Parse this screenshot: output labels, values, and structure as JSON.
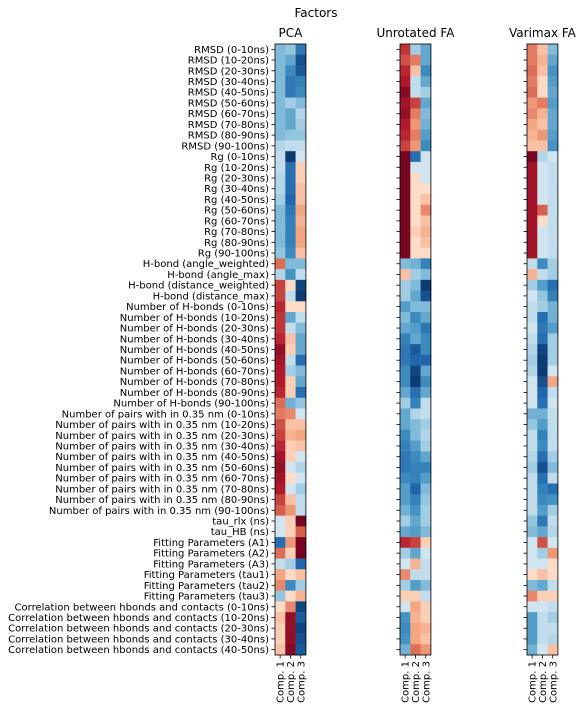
{
  "chart_data": {
    "type": "heatmap",
    "title": "Factors",
    "colormap": "RdBu",
    "range": [
      -1,
      1
    ],
    "rows": [
      "RMSD (0-10ns)",
      "RMSD (10-20ns)",
      "RMSD (20-30ns)",
      "RMSD (30-40ns)",
      "RMSD (40-50ns)",
      "RMSD (50-60ns)",
      "RMSD (60-70ns)",
      "RMSD (70-80ns)",
      "RMSD (80-90ns)",
      "RMSD (90-100ns)",
      "Rg (0-10ns)",
      "Rg (10-20ns)",
      "Rg (20-30ns)",
      "Rg (30-40ns)",
      "Rg (40-50ns)",
      "Rg (50-60ns)",
      "Rg (60-70ns)",
      "Rg (70-80ns)",
      "Rg (80-90ns)",
      "Rg (90-100ns)",
      "H-bond (angle_weighted)",
      "H-bond (angle_max)",
      "H-bond (distance_weighted)",
      "H-bond (distance_max)",
      "Number of H-bonds (0-10ns)",
      "Number of H-bonds (10-20ns)",
      "Number of H-bonds (20-30ns)",
      "Number of H-bonds (30-40ns)",
      "Number of H-bonds (40-50ns)",
      "Number of H-bonds (50-60ns)",
      "Number of H-bonds (60-70ns)",
      "Number of H-bonds (70-80ns)",
      "Number of H-bonds (80-90ns)",
      "Number of H-bonds (90-100ns)",
      "Number of pairs with in 0.35 nm (0-10ns)",
      "Number of pairs with in 0.35 nm (10-20ns)",
      "Number of pairs with in 0.35 nm (20-30ns)",
      "Number of pairs with in 0.35 nm (30-40ns)",
      "Number of pairs with in 0.35 nm (40-50ns)",
      "Number of pairs with in 0.35 nm (50-60ns)",
      "Number of pairs with in 0.35 nm (60-70ns)",
      "Number of pairs with in 0.35 nm (70-80ns)",
      "Number of pairs with in 0.35 nm (80-90ns)",
      "Number of pairs with in 0.35 nm (90-100ns)",
      "tau_rlx (ns)",
      "tau_HB (ns)",
      "Fitting Parameters (A1)",
      "Fitting Parameters (A2)",
      "Fitting Parameters (A3)",
      "Fitting Parameters (tau1)",
      "Fitting Parameters (tau2)",
      "Fitting Parameters (tau3)",
      "Correlation between hbonds and contacts (0-10ns)",
      "Correlation between hbonds and contacts (10-20ns)",
      "Correlation between hbonds and contacts (20-30ns)",
      "Correlation between hbonds and contacts (30-40ns)",
      "Correlation between hbonds and contacts (40-50ns)"
    ],
    "columns": [
      "Comp. 1",
      "Comp. 2",
      "Comp. 3"
    ],
    "panels": [
      {
        "title": "PCA",
        "values": [
          [
            -0.3,
            -0.25,
            -0.65
          ],
          [
            -0.3,
            -0.4,
            -0.85
          ],
          [
            -0.3,
            -0.55,
            -0.8
          ],
          [
            -0.3,
            -0.65,
            -0.6
          ],
          [
            -0.3,
            -0.65,
            -0.55
          ],
          [
            -0.3,
            -0.2,
            -0.3
          ],
          [
            -0.3,
            -0.4,
            -0.15
          ],
          [
            -0.3,
            -0.4,
            -0.2
          ],
          [
            -0.3,
            -0.25,
            -0.25
          ],
          [
            -0.15,
            -0.1,
            -0.1
          ],
          [
            -0.1,
            -0.95,
            -0.05
          ],
          [
            -0.1,
            -0.7,
            0.1
          ],
          [
            -0.15,
            -0.7,
            0.1
          ],
          [
            -0.15,
            -0.7,
            0.15
          ],
          [
            -0.2,
            -0.75,
            0.15
          ],
          [
            -0.3,
            -0.65,
            0.25
          ],
          [
            -0.3,
            -0.6,
            0.2
          ],
          [
            -0.3,
            -0.6,
            0.25
          ],
          [
            -0.3,
            -0.6,
            0.25
          ],
          [
            -0.25,
            -0.55,
            0.15
          ],
          [
            0.45,
            -0.3,
            -0.3
          ],
          [
            -0.15,
            -0.5,
            -0.1
          ],
          [
            0.6,
            0.05,
            -0.9
          ],
          [
            0.6,
            -0.1,
            -0.95
          ],
          [
            0.7,
            0.05,
            0.05
          ],
          [
            0.65,
            -0.4,
            -0.1
          ],
          [
            0.65,
            -0.1,
            -0.3
          ],
          [
            0.7,
            0.15,
            -0.4
          ],
          [
            0.85,
            0.1,
            -0.4
          ],
          [
            0.8,
            -0.1,
            -0.7
          ],
          [
            0.75,
            -0.2,
            -0.3
          ],
          [
            0.75,
            0.1,
            -0.4
          ],
          [
            0.7,
            0.1,
            -0.7
          ],
          [
            0.45,
            -0.35,
            -0.25
          ],
          [
            0.4,
            0.35,
            -0.05
          ],
          [
            0.55,
            0.15,
            0.15
          ],
          [
            0.6,
            0.2,
            0.25
          ],
          [
            0.7,
            0.1,
            0.15
          ],
          [
            0.8,
            0.1,
            -0.05
          ],
          [
            0.85,
            -0.05,
            -0.15
          ],
          [
            0.8,
            0.05,
            -0.05
          ],
          [
            0.75,
            -0.05,
            -0.2
          ],
          [
            0.6,
            0.15,
            -0.1
          ],
          [
            0.5,
            0.3,
            -0.1
          ],
          [
            -0.05,
            0.1,
            0.95
          ],
          [
            -0.05,
            0.1,
            0.5
          ],
          [
            -0.7,
            0.3,
            0.95
          ],
          [
            0.45,
            0.1,
            0.95
          ],
          [
            -0.1,
            -0.2,
            -0.75
          ],
          [
            0.25,
            0.05,
            0.15
          ],
          [
            0.35,
            -0.55,
            -0.2
          ],
          [
            -0.25,
            0.05,
            0.2
          ],
          [
            0.05,
            0.35,
            -0.9
          ],
          [
            0.15,
            0.85,
            -0.8
          ],
          [
            0.1,
            0.85,
            -0.9
          ],
          [
            0.1,
            0.85,
            -0.85
          ],
          [
            0.15,
            0.9,
            -0.8
          ]
        ]
      },
      {
        "title": "Unrotated FA",
        "values": [
          [
            0.65,
            -0.2,
            -0.4
          ],
          [
            0.55,
            0.4,
            -0.4
          ],
          [
            0.7,
            0.15,
            -0.55
          ],
          [
            0.75,
            -0.1,
            -0.4
          ],
          [
            0.9,
            -0.1,
            -0.2
          ],
          [
            0.8,
            0.6,
            -0.4
          ],
          [
            0.85,
            0.4,
            -0.3
          ],
          [
            0.75,
            0.3,
            -0.35
          ],
          [
            0.7,
            0.4,
            -0.45
          ],
          [
            0.6,
            0.3,
            -0.55
          ],
          [
            0.95,
            -0.7,
            -0.05
          ],
          [
            0.95,
            -0.05,
            -0.05
          ],
          [
            0.95,
            0.05,
            -0.05
          ],
          [
            0.95,
            0.05,
            0.05
          ],
          [
            0.95,
            0.05,
            0.15
          ],
          [
            0.95,
            0.05,
            0.35
          ],
          [
            0.95,
            0.05,
            0.15
          ],
          [
            0.95,
            0.1,
            0.2
          ],
          [
            0.95,
            0.05,
            0.15
          ],
          [
            0.95,
            0.05,
            0.05
          ],
          [
            -0.3,
            -0.35,
            -0.6
          ],
          [
            0.15,
            -0.2,
            -0.3
          ],
          [
            -0.2,
            -0.3,
            -0.95
          ],
          [
            -0.2,
            -0.4,
            -0.85
          ],
          [
            -0.45,
            -0.3,
            -0.3
          ],
          [
            -0.3,
            -0.55,
            -0.4
          ],
          [
            -0.4,
            -0.45,
            -0.65
          ],
          [
            -0.6,
            -0.4,
            -0.55
          ],
          [
            -0.65,
            -0.8,
            -0.55
          ],
          [
            -0.65,
            -0.75,
            -0.75
          ],
          [
            -0.55,
            -0.9,
            -0.4
          ],
          [
            -0.55,
            -0.95,
            -0.55
          ],
          [
            -0.4,
            -0.7,
            -0.4
          ],
          [
            -0.2,
            -0.6,
            -0.1
          ],
          [
            -0.4,
            -0.15,
            -0.1
          ],
          [
            -0.4,
            -0.3,
            -0.2
          ],
          [
            -0.55,
            -0.3,
            -0.15
          ],
          [
            -0.6,
            -0.45,
            -0.2
          ],
          [
            -0.65,
            -0.55,
            -0.4
          ],
          [
            -0.65,
            -0.6,
            -0.6
          ],
          [
            -0.55,
            -0.6,
            -0.45
          ],
          [
            -0.45,
            -0.75,
            -0.3
          ],
          [
            -0.45,
            -0.6,
            -0.25
          ],
          [
            -0.35,
            -0.5,
            -0.2
          ],
          [
            -0.2,
            -0.4,
            -0.2
          ],
          [
            -0.4,
            -0.45,
            -0.3
          ],
          [
            0.7,
            0.6,
            0.1
          ],
          [
            -0.2,
            -0.4,
            -0.05
          ],
          [
            -0.05,
            0.2,
            -0.1
          ],
          [
            0.35,
            -0.1,
            -0.1
          ],
          [
            -0.2,
            -0.45,
            -0.3
          ],
          [
            0.1,
            0.1,
            -0.1
          ],
          [
            -0.05,
            0.25,
            0.1
          ],
          [
            -0.5,
            0.2,
            0.1
          ],
          [
            -0.55,
            0.25,
            0.2
          ],
          [
            -0.5,
            0.25,
            0.15
          ],
          [
            -0.35,
            0.45,
            0.3
          ]
        ]
      },
      {
        "title": "Varimax FA",
        "values": [
          [
            0.4,
            0.15,
            -0.3
          ],
          [
            0.4,
            0.2,
            -0.4
          ],
          [
            0.45,
            0.15,
            -0.5
          ],
          [
            0.4,
            0.05,
            -0.45
          ],
          [
            0.45,
            0.05,
            -0.4
          ],
          [
            0.3,
            0.4,
            -0.45
          ],
          [
            0.35,
            0.2,
            -0.4
          ],
          [
            0.25,
            0.15,
            -0.4
          ],
          [
            0.2,
            0.3,
            -0.45
          ],
          [
            0.15,
            0.15,
            -0.5
          ],
          [
            0.95,
            -0.15,
            -0.05
          ],
          [
            0.8,
            -0.05,
            -0.1
          ],
          [
            0.8,
            -0.05,
            -0.1
          ],
          [
            0.8,
            -0.05,
            -0.1
          ],
          [
            0.8,
            -0.05,
            -0.1
          ],
          [
            0.8,
            0.5,
            -0.1
          ],
          [
            0.8,
            0.05,
            -0.1
          ],
          [
            0.8,
            -0.05,
            -0.1
          ],
          [
            0.8,
            -0.05,
            -0.1
          ],
          [
            0.8,
            -0.05,
            -0.1
          ],
          [
            -0.1,
            -0.55,
            -0.2
          ],
          [
            0.2,
            -0.1,
            -0.2
          ],
          [
            -0.2,
            -0.45,
            -0.7
          ],
          [
            -0.05,
            -0.25,
            -0.6
          ],
          [
            -0.1,
            -0.2,
            -0.35
          ],
          [
            -0.1,
            -0.7,
            -0.35
          ],
          [
            -0.05,
            -0.65,
            -0.45
          ],
          [
            -0.1,
            -0.7,
            -0.2
          ],
          [
            -0.15,
            -0.9,
            -0.2
          ],
          [
            -0.2,
            -0.95,
            -0.2
          ],
          [
            -0.15,
            -0.95,
            -0.05
          ],
          [
            -0.05,
            -0.85,
            0.25
          ],
          [
            -0.05,
            -0.75,
            -0.1
          ],
          [
            -0.05,
            -0.7,
            -0.05
          ],
          [
            -0.35,
            -0.35,
            -0.1
          ],
          [
            -0.25,
            -0.45,
            -0.1
          ],
          [
            -0.1,
            -0.6,
            -0.1
          ],
          [
            -0.1,
            -0.55,
            -0.1
          ],
          [
            -0.15,
            -0.7,
            -0.2
          ],
          [
            -0.2,
            -0.85,
            -0.3
          ],
          [
            -0.1,
            -0.7,
            -0.1
          ],
          [
            -0.1,
            -0.6,
            -0.7
          ],
          [
            -0.1,
            -0.55,
            -0.5
          ],
          [
            -0.1,
            -0.45,
            -0.2
          ],
          [
            -0.25,
            -0.65,
            -0.1
          ],
          [
            -0.3,
            -0.4,
            -0.15
          ],
          [
            -0.05,
            0.55,
            -0.05
          ],
          [
            -0.05,
            -0.2,
            0.3
          ],
          [
            -0.05,
            -0.05,
            0.05
          ],
          [
            0.05,
            0.15,
            0.05
          ],
          [
            -0.3,
            -0.4,
            -0.1
          ],
          [
            0.35,
            0.1,
            0.1
          ],
          [
            -0.05,
            -0.05,
            -0.1
          ],
          [
            -0.45,
            -0.1,
            -0.2
          ],
          [
            -0.45,
            -0.1,
            -0.1
          ],
          [
            -0.45,
            -0.1,
            -0.15
          ],
          [
            -0.35,
            -0.05,
            0.15
          ]
        ]
      }
    ]
  }
}
